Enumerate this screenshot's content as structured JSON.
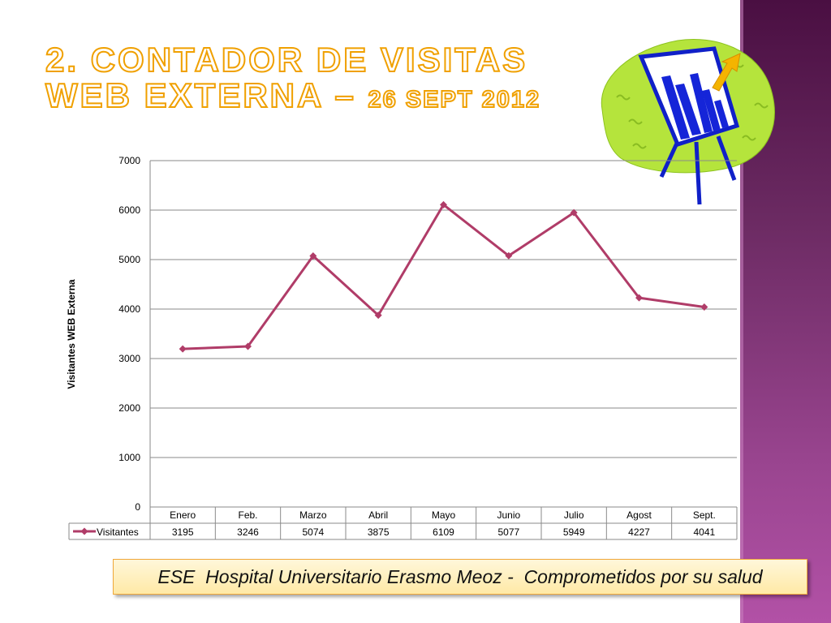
{
  "slide": {
    "title_line1": "2. Contador de visitas",
    "title_line2_main": "WEB Externa – ",
    "title_line2_date": "26 Sept 2012",
    "footer": "ESE  Hospital Universitario Erasmo Meoz -  Comprometidos por su salud",
    "accent_color": "#f0a000",
    "side_band_color": "#6b2a62",
    "clipart_icon": "presentation-chart-easel-icon"
  },
  "chart_data": {
    "type": "line",
    "title": "",
    "xlabel": "",
    "ylabel": "Visitantes WEB Externa",
    "ylim": [
      0,
      7000
    ],
    "yticks": [
      0,
      1000,
      2000,
      3000,
      4000,
      5000,
      6000,
      7000
    ],
    "categories": [
      "Enero",
      "Feb.",
      "Marzo",
      "Abril",
      "Mayo",
      "Junio",
      "Julio",
      "Agost",
      "Sept."
    ],
    "series": [
      {
        "name": "Visitantes",
        "values": [
          3195,
          3246,
          5074,
          3875,
          6109,
          5077,
          5949,
          4227,
          4041
        ],
        "color": "#b03c68"
      }
    ],
    "grid": true,
    "legend": "data-table-left",
    "data_table": true
  }
}
